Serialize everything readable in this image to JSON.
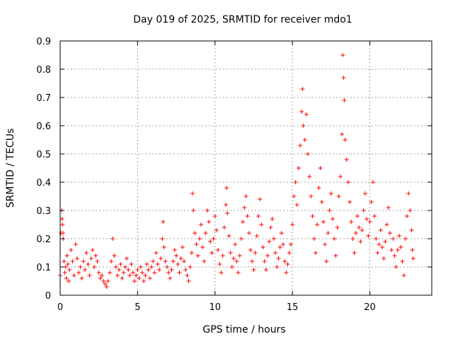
{
  "chart_data": {
    "type": "scatter",
    "title": "Day 019 of 2025, SRMTID for receiver mdo1",
    "xlabel": "GPS time / hours",
    "ylabel": "SRMTID / TECUs",
    "xlim": [
      0,
      24
    ],
    "ylim": [
      0,
      0.9
    ],
    "xticks": [
      0,
      5,
      10,
      15,
      20
    ],
    "xtick_labels": [
      "0",
      "5",
      "10",
      "15",
      "20"
    ],
    "yticks": [
      0,
      0.1,
      0.2,
      0.3,
      0.4,
      0.5,
      0.6,
      0.7,
      0.8,
      0.9
    ],
    "ytick_labels": [
      "0",
      "0.1",
      "0.2",
      "0.3",
      "0.4",
      "0.5",
      "0.6",
      "0.7",
      "0.8",
      "0.9"
    ],
    "grid": true,
    "marker": "+",
    "color": "#ff0000",
    "series": [
      {
        "name": "SRMTID",
        "points": [
          [
            0.0,
            0.07
          ],
          [
            0.05,
            0.22
          ],
          [
            0.1,
            0.3
          ],
          [
            0.12,
            0.27
          ],
          [
            0.15,
            0.25
          ],
          [
            0.18,
            0.22
          ],
          [
            0.2,
            0.2
          ],
          [
            0.25,
            0.12
          ],
          [
            0.3,
            0.08
          ],
          [
            0.35,
            0.1
          ],
          [
            0.4,
            0.06
          ],
          [
            0.45,
            0.14
          ],
          [
            0.5,
            0.11
          ],
          [
            0.55,
            0.05
          ],
          [
            0.6,
            0.09
          ],
          [
            0.7,
            0.16
          ],
          [
            0.8,
            0.12
          ],
          [
            0.9,
            0.07
          ],
          [
            1.0,
            0.18
          ],
          [
            1.1,
            0.13
          ],
          [
            1.2,
            0.08
          ],
          [
            1.3,
            0.1
          ],
          [
            1.4,
            0.06
          ],
          [
            1.5,
            0.12
          ],
          [
            1.6,
            0.09
          ],
          [
            1.7,
            0.15
          ],
          [
            1.8,
            0.11
          ],
          [
            1.9,
            0.07
          ],
          [
            2.0,
            0.13
          ],
          [
            2.1,
            0.16
          ],
          [
            2.2,
            0.1
          ],
          [
            2.3,
            0.14
          ],
          [
            2.4,
            0.12
          ],
          [
            2.5,
            0.08
          ],
          [
            2.6,
            0.06
          ],
          [
            2.7,
            0.07
          ],
          [
            2.8,
            0.05
          ],
          [
            2.9,
            0.04
          ],
          [
            3.0,
            0.03
          ],
          [
            3.1,
            0.05
          ],
          [
            3.2,
            0.08
          ],
          [
            3.3,
            0.12
          ],
          [
            3.4,
            0.2
          ],
          [
            3.5,
            0.14
          ],
          [
            3.6,
            0.1
          ],
          [
            3.7,
            0.07
          ],
          [
            3.8,
            0.09
          ],
          [
            3.9,
            0.11
          ],
          [
            4.0,
            0.06
          ],
          [
            4.1,
            0.08
          ],
          [
            4.2,
            0.1
          ],
          [
            4.3,
            0.13
          ],
          [
            4.4,
            0.09
          ],
          [
            4.5,
            0.07
          ],
          [
            4.6,
            0.11
          ],
          [
            4.7,
            0.08
          ],
          [
            4.8,
            0.05
          ],
          [
            4.9,
            0.07
          ],
          [
            5.0,
            0.09
          ],
          [
            5.1,
            0.06
          ],
          [
            5.2,
            0.1
          ],
          [
            5.3,
            0.08
          ],
          [
            5.4,
            0.05
          ],
          [
            5.5,
            0.07
          ],
          [
            5.6,
            0.11
          ],
          [
            5.7,
            0.09
          ],
          [
            5.8,
            0.06
          ],
          [
            5.9,
            0.1
          ],
          [
            6.0,
            0.12
          ],
          [
            6.1,
            0.08
          ],
          [
            6.2,
            0.15
          ],
          [
            6.3,
            0.11
          ],
          [
            6.4,
            0.09
          ],
          [
            6.5,
            0.13
          ],
          [
            6.6,
            0.2
          ],
          [
            6.65,
            0.26
          ],
          [
            6.7,
            0.17
          ],
          [
            6.8,
            0.12
          ],
          [
            6.9,
            0.1
          ],
          [
            7.0,
            0.08
          ],
          [
            7.1,
            0.06
          ],
          [
            7.2,
            0.09
          ],
          [
            7.3,
            0.12
          ],
          [
            7.4,
            0.16
          ],
          [
            7.5,
            0.14
          ],
          [
            7.6,
            0.11
          ],
          [
            7.7,
            0.08
          ],
          [
            7.8,
            0.13
          ],
          [
            7.9,
            0.17
          ],
          [
            8.0,
            0.12
          ],
          [
            8.1,
            0.09
          ],
          [
            8.2,
            0.07
          ],
          [
            8.3,
            0.05
          ],
          [
            8.4,
            0.1
          ],
          [
            8.5,
            0.15
          ],
          [
            8.55,
            0.36
          ],
          [
            8.6,
            0.3
          ],
          [
            8.7,
            0.22
          ],
          [
            8.8,
            0.18
          ],
          [
            8.9,
            0.14
          ],
          [
            9.0,
            0.2
          ],
          [
            9.1,
            0.25
          ],
          [
            9.2,
            0.17
          ],
          [
            9.3,
            0.12
          ],
          [
            9.4,
            0.22
          ],
          [
            9.5,
            0.3
          ],
          [
            9.6,
            0.26
          ],
          [
            9.7,
            0.19
          ],
          [
            9.8,
            0.15
          ],
          [
            9.9,
            0.2
          ],
          [
            10.0,
            0.28
          ],
          [
            10.1,
            0.23
          ],
          [
            10.2,
            0.16
          ],
          [
            10.3,
            0.11
          ],
          [
            10.4,
            0.08
          ],
          [
            10.5,
            0.14
          ],
          [
            10.6,
            0.24
          ],
          [
            10.7,
            0.32
          ],
          [
            10.75,
            0.38
          ],
          [
            10.8,
            0.29
          ],
          [
            10.9,
            0.21
          ],
          [
            11.0,
            0.15
          ],
          [
            11.1,
            0.1
          ],
          [
            11.2,
            0.13
          ],
          [
            11.3,
            0.18
          ],
          [
            11.4,
            0.12
          ],
          [
            11.5,
            0.08
          ],
          [
            11.6,
            0.14
          ],
          [
            11.7,
            0.2
          ],
          [
            11.8,
            0.26
          ],
          [
            11.9,
            0.31
          ],
          [
            12.0,
            0.35
          ],
          [
            12.1,
            0.28
          ],
          [
            12.2,
            0.22
          ],
          [
            12.3,
            0.16
          ],
          [
            12.4,
            0.12
          ],
          [
            12.5,
            0.09
          ],
          [
            12.6,
            0.15
          ],
          [
            12.7,
            0.21
          ],
          [
            12.8,
            0.28
          ],
          [
            12.9,
            0.34
          ],
          [
            13.0,
            0.25
          ],
          [
            13.1,
            0.17
          ],
          [
            13.2,
            0.12
          ],
          [
            13.3,
            0.09
          ],
          [
            13.4,
            0.14
          ],
          [
            13.5,
            0.19
          ],
          [
            13.6,
            0.24
          ],
          [
            13.7,
            0.27
          ],
          [
            13.8,
            0.2
          ],
          [
            13.9,
            0.15
          ],
          [
            14.0,
            0.1
          ],
          [
            14.1,
            0.13
          ],
          [
            14.2,
            0.17
          ],
          [
            14.3,
            0.22
          ],
          [
            14.4,
            0.18
          ],
          [
            14.5,
            0.12
          ],
          [
            14.6,
            0.08
          ],
          [
            14.7,
            0.11
          ],
          [
            14.8,
            0.15
          ],
          [
            14.9,
            0.18
          ],
          [
            15.0,
            0.25
          ],
          [
            15.1,
            0.35
          ],
          [
            15.2,
            0.4
          ],
          [
            15.3,
            0.32
          ],
          [
            15.4,
            0.45
          ],
          [
            15.5,
            0.53
          ],
          [
            15.6,
            0.65
          ],
          [
            15.65,
            0.73
          ],
          [
            15.7,
            0.6
          ],
          [
            15.8,
            0.55
          ],
          [
            15.9,
            0.64
          ],
          [
            16.0,
            0.5
          ],
          [
            16.1,
            0.42
          ],
          [
            16.2,
            0.35
          ],
          [
            16.3,
            0.28
          ],
          [
            16.4,
            0.2
          ],
          [
            16.5,
            0.15
          ],
          [
            16.6,
            0.25
          ],
          [
            16.7,
            0.38
          ],
          [
            16.8,
            0.45
          ],
          [
            16.9,
            0.33
          ],
          [
            17.0,
            0.26
          ],
          [
            17.1,
            0.18
          ],
          [
            17.2,
            0.12
          ],
          [
            17.3,
            0.22
          ],
          [
            17.4,
            0.3
          ],
          [
            17.5,
            0.36
          ],
          [
            17.6,
            0.27
          ],
          [
            17.7,
            0.2
          ],
          [
            17.8,
            0.14
          ],
          [
            17.9,
            0.24
          ],
          [
            18.0,
            0.35
          ],
          [
            18.1,
            0.42
          ],
          [
            18.2,
            0.57
          ],
          [
            18.25,
            0.85
          ],
          [
            18.3,
            0.77
          ],
          [
            18.35,
            0.69
          ],
          [
            18.4,
            0.55
          ],
          [
            18.5,
            0.48
          ],
          [
            18.6,
            0.4
          ],
          [
            18.7,
            0.33
          ],
          [
            18.8,
            0.26
          ],
          [
            18.9,
            0.2
          ],
          [
            19.0,
            0.15
          ],
          [
            19.1,
            0.22
          ],
          [
            19.2,
            0.28
          ],
          [
            19.3,
            0.24
          ],
          [
            19.4,
            0.19
          ],
          [
            19.5,
            0.23
          ],
          [
            19.6,
            0.3
          ],
          [
            19.7,
            0.36
          ],
          [
            19.8,
            0.27
          ],
          [
            19.9,
            0.21
          ],
          [
            20.0,
            0.26
          ],
          [
            20.1,
            0.33
          ],
          [
            20.2,
            0.4
          ],
          [
            20.3,
            0.28
          ],
          [
            20.4,
            0.2
          ],
          [
            20.5,
            0.15
          ],
          [
            20.6,
            0.18
          ],
          [
            20.7,
            0.23
          ],
          [
            20.8,
            0.17
          ],
          [
            20.9,
            0.13
          ],
          [
            21.0,
            0.19
          ],
          [
            21.1,
            0.25
          ],
          [
            21.2,
            0.31
          ],
          [
            21.3,
            0.22
          ],
          [
            21.4,
            0.16
          ],
          [
            21.5,
            0.2
          ],
          [
            21.6,
            0.14
          ],
          [
            21.7,
            0.1
          ],
          [
            21.8,
            0.16
          ],
          [
            21.9,
            0.21
          ],
          [
            22.0,
            0.17
          ],
          [
            22.1,
            0.12
          ],
          [
            22.2,
            0.07
          ],
          [
            22.3,
            0.2
          ],
          [
            22.4,
            0.28
          ],
          [
            22.5,
            0.36
          ],
          [
            22.6,
            0.3
          ],
          [
            22.7,
            0.23
          ],
          [
            22.75,
            0.16
          ],
          [
            22.8,
            0.13
          ]
        ]
      }
    ]
  }
}
